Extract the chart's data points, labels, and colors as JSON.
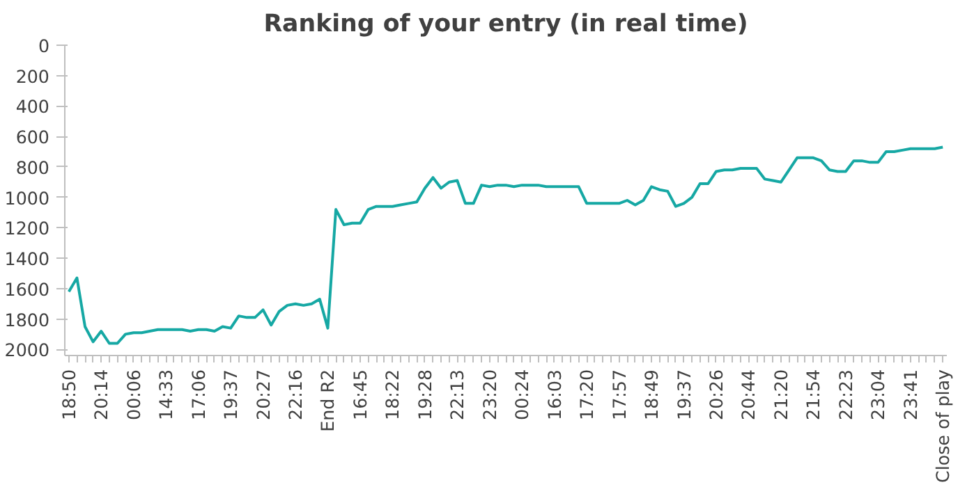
{
  "chart_data": {
    "type": "line",
    "title": "Ranking of your entry (in real time)",
    "categories": [
      "18:50",
      null,
      null,
      null,
      "20:14",
      null,
      null,
      null,
      "00:06",
      null,
      null,
      null,
      "14:33",
      null,
      null,
      null,
      "17:06",
      null,
      null,
      null,
      "19:37",
      null,
      null,
      null,
      "20:27",
      null,
      null,
      null,
      "22:16",
      null,
      null,
      null,
      "End R2",
      null,
      null,
      null,
      "16:45",
      null,
      null,
      null,
      "18:22",
      null,
      null,
      null,
      "19:28",
      null,
      null,
      null,
      "22:13",
      null,
      null,
      null,
      "23:20",
      null,
      null,
      null,
      "00:24",
      null,
      null,
      null,
      "16:03",
      null,
      null,
      null,
      "17:20",
      null,
      null,
      null,
      "17:57",
      null,
      null,
      null,
      "18:49",
      null,
      null,
      null,
      "19:37",
      null,
      null,
      null,
      "20:26",
      null,
      null,
      null,
      "20:44",
      null,
      null,
      null,
      "21:20",
      null,
      null,
      null,
      "21:54",
      null,
      null,
      null,
      "22:23",
      null,
      null,
      null,
      "23:04",
      null,
      null,
      null,
      "23:41",
      null,
      null,
      null,
      "Close of play"
    ],
    "series": [
      {
        "color": "#16a8a4",
        "values": [
          1620,
          1530,
          1850,
          1950,
          1880,
          1960,
          1960,
          1900,
          1890,
          1890,
          1880,
          1870,
          1870,
          1870,
          1870,
          1880,
          1870,
          1870,
          1880,
          1850,
          1860,
          1780,
          1790,
          1790,
          1740,
          1840,
          1750,
          1710,
          1700,
          1710,
          1700,
          1670,
          1860,
          1080,
          1180,
          1170,
          1170,
          1080,
          1060,
          1060,
          1060,
          1050,
          1040,
          1030,
          940,
          870,
          940,
          900,
          890,
          1040,
          1040,
          920,
          930,
          920,
          920,
          930,
          920,
          920,
          920,
          930,
          930,
          930,
          930,
          930,
          1040,
          1040,
          1040,
          1040,
          1040,
          1020,
          1050,
          1020,
          930,
          950,
          960,
          1060,
          1040,
          1000,
          910,
          910,
          830,
          820,
          820,
          810,
          810,
          810,
          880,
          890,
          900,
          820,
          740,
          740,
          740,
          760,
          820,
          830,
          830,
          760,
          760,
          770,
          770,
          700,
          700,
          690,
          680,
          680,
          680,
          680,
          670
        ]
      }
    ],
    "ylim": [
      2040,
      0
    ],
    "yticks": [
      0,
      200,
      400,
      600,
      800,
      1000,
      1200,
      1400,
      1600,
      1800,
      2000
    ],
    "grid": false,
    "marker": "none",
    "line_style": "solid"
  }
}
